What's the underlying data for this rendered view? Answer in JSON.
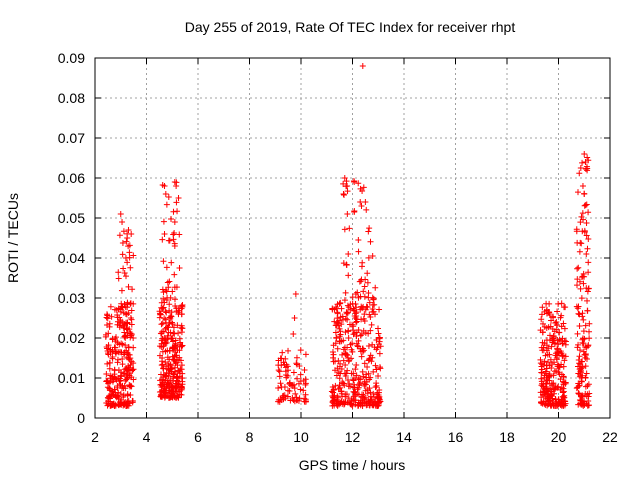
{
  "chart_data": {
    "type": "scatter",
    "title": "Day 255 of 2019, Rate Of TEC Index for receiver rhpt",
    "xlabel": "GPS time / hours",
    "ylabel": "ROTI / TECUs",
    "xlim": [
      2,
      22
    ],
    "ylim": [
      0,
      0.09
    ],
    "x_ticks": [
      "2",
      "4",
      "6",
      "8",
      "10",
      "12",
      "14",
      "16",
      "18",
      "20",
      "22"
    ],
    "y_ticks": [
      "0",
      "0.01",
      "0.02",
      "0.03",
      "0.04",
      "0.05",
      "0.06",
      "0.07",
      "0.08",
      "0.09"
    ],
    "grid": true,
    "marker": "+",
    "marker_color": "#ff0000",
    "series": [
      {
        "name": "ROTI",
        "clusters": [
          {
            "x_range": [
              2.4,
              3.5
            ],
            "y_range": [
              0.003,
              0.029
            ],
            "density": 260
          },
          {
            "x_range": [
              2.9,
              3.5
            ],
            "y_range": [
              0.02,
              0.05
            ],
            "density": 40
          },
          {
            "x_range": [
              4.5,
              5.4
            ],
            "y_range": [
              0.005,
              0.03
            ],
            "density": 280
          },
          {
            "x_range": [
              4.6,
              5.3
            ],
            "y_range": [
              0.03,
              0.059
            ],
            "density": 35
          },
          {
            "x_range": [
              9.1,
              10.2
            ],
            "y_range": [
              0.004,
              0.017
            ],
            "density": 80
          },
          {
            "x_range": [
              11.2,
              13.1
            ],
            "y_range": [
              0.003,
              0.03
            ],
            "density": 360
          },
          {
            "x_range": [
              11.6,
              12.9
            ],
            "y_range": [
              0.03,
              0.06
            ],
            "density": 50
          },
          {
            "x_range": [
              19.3,
              20.3
            ],
            "y_range": [
              0.003,
              0.029
            ],
            "density": 260
          },
          {
            "x_range": [
              20.7,
              21.2
            ],
            "y_range": [
              0.003,
              0.066
            ],
            "density": 150
          }
        ],
        "points": [
          [
            3.0,
            0.051
          ],
          [
            3.05,
            0.049
          ],
          [
            3.3,
            0.047
          ],
          [
            3.25,
            0.045
          ],
          [
            4.7,
            0.058
          ],
          [
            4.75,
            0.056
          ],
          [
            5.1,
            0.059
          ],
          [
            5.15,
            0.058
          ],
          [
            5.1,
            0.049
          ],
          [
            5.1,
            0.043
          ],
          [
            4.7,
            0.046
          ],
          [
            9.8,
            0.031
          ],
          [
            9.75,
            0.025
          ],
          [
            9.7,
            0.021
          ],
          [
            11.7,
            0.06
          ],
          [
            11.65,
            0.056
          ],
          [
            11.8,
            0.051
          ],
          [
            12.3,
            0.054
          ],
          [
            12.35,
            0.053
          ],
          [
            12.5,
            0.054
          ],
          [
            12.4,
            0.088
          ],
          [
            21.0,
            0.066
          ],
          [
            21.05,
            0.064
          ],
          [
            20.95,
            0.058
          ],
          [
            21.0,
            0.056
          ]
        ]
      }
    ]
  }
}
